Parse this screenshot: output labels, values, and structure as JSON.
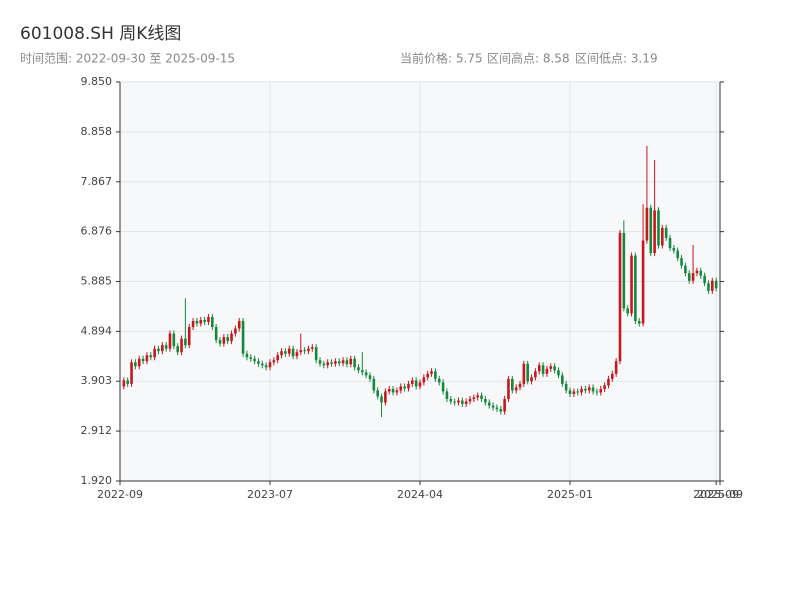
{
  "chart_data": {
    "type": "candlestick",
    "title": "601008.SH 周K线图",
    "subtitle": "时间范围: 2022-09-30 至 2025-09-15",
    "stats": [
      "当前价格: 5.75",
      "区间高点: 8.58",
      "区间低点: 3.19"
    ],
    "up_color": "#c8161d",
    "down_color": "#16883c",
    "grid": true,
    "xlim": [
      -1,
      155
    ],
    "xticks": [
      {
        "value": -1,
        "label": "2022-09"
      },
      {
        "value": 38,
        "label": "2023-07"
      },
      {
        "value": 77,
        "label": "2024-04"
      },
      {
        "value": 116,
        "label": "2025-01"
      },
      {
        "value": 154,
        "label": "2025-09"
      },
      {
        "value": 155,
        "label": "2025-09"
      }
    ],
    "ylim": [
      1.92,
      9.85
    ],
    "yticks": [
      {
        "value": 1.92,
        "label": "1.920"
      },
      2.912,
      3.903,
      4.894,
      5.885,
      6.876,
      7.867,
      8.858,
      {
        "value": 9.85,
        "label": "9.850"
      }
    ],
    "open": [
      3.8,
      3.92,
      3.85,
      4.28,
      4.2,
      4.35,
      4.3,
      4.42,
      4.38,
      4.55,
      4.5,
      4.62,
      4.55,
      4.85,
      4.6,
      4.48,
      4.75,
      4.62,
      4.98,
      5.1,
      5.05,
      5.12,
      5.08,
      5.18,
      4.98,
      4.72,
      4.65,
      4.78,
      4.7,
      4.85,
      4.95,
      5.1,
      4.45,
      4.38,
      4.35,
      4.3,
      4.25,
      4.22,
      4.18,
      4.28,
      4.32,
      4.42,
      4.5,
      4.45,
      4.55,
      4.4,
      4.48,
      4.52,
      4.5,
      4.55,
      4.58,
      4.32,
      4.25,
      4.22,
      4.28,
      4.25,
      4.3,
      4.26,
      4.32,
      4.24,
      4.35,
      4.18,
      4.12,
      4.08,
      4.02,
      3.95,
      3.72,
      3.6,
      3.48,
      3.7,
      3.75,
      3.68,
      3.72,
      3.8,
      3.76,
      3.85,
      3.92,
      3.8,
      3.88,
      3.98,
      4.05,
      4.1,
      3.95,
      3.88,
      3.7,
      3.55,
      3.5,
      3.48,
      3.52,
      3.45,
      3.5,
      3.55,
      3.58,
      3.62,
      3.55,
      3.48,
      3.42,
      3.38,
      3.35,
      3.3,
      3.55,
      3.95,
      3.72,
      3.78,
      3.85,
      4.25,
      3.9,
      3.98,
      4.1,
      4.22,
      4.05,
      4.15,
      4.2,
      4.12,
      4.02,
      3.85,
      3.72,
      3.65,
      3.7,
      3.68,
      3.75,
      3.72,
      3.78,
      3.7,
      3.68,
      3.75,
      3.82,
      3.95,
      4.05,
      4.3,
      6.85,
      5.35,
      5.25,
      6.4,
      5.1,
      5.05,
      6.7,
      7.35,
      6.45,
      7.3,
      6.6,
      6.95,
      6.75,
      6.55,
      6.5,
      6.35,
      6.2,
      6.05,
      5.9,
      6.05,
      6.1,
      6.0,
      5.85,
      5.7,
      5.9
    ],
    "high": [
      3.98,
      3.98,
      4.34,
      4.34,
      4.41,
      4.41,
      4.48,
      4.48,
      4.61,
      4.61,
      4.68,
      4.68,
      4.91,
      4.91,
      4.66,
      4.81,
      5.55,
      5.04,
      5.16,
      5.16,
      5.18,
      5.18,
      5.24,
      5.24,
      5.04,
      4.78,
      4.84,
      4.84,
      4.91,
      5.01,
      5.16,
      5.16,
      4.51,
      4.44,
      4.41,
      4.36,
      4.31,
      4.28,
      4.34,
      4.38,
      4.48,
      4.56,
      4.56,
      4.61,
      4.61,
      4.54,
      4.85,
      4.58,
      4.61,
      4.64,
      4.64,
      4.38,
      4.31,
      4.34,
      4.34,
      4.36,
      4.36,
      4.38,
      4.38,
      4.41,
      4.41,
      4.24,
      4.48,
      4.14,
      4.08,
      4.01,
      3.78,
      3.66,
      3.76,
      3.81,
      3.81,
      3.78,
      3.86,
      3.86,
      3.91,
      3.98,
      3.98,
      3.94,
      4.04,
      4.11,
      4.16,
      4.16,
      4.01,
      3.94,
      3.76,
      3.61,
      3.56,
      3.58,
      3.58,
      3.56,
      3.61,
      3.64,
      3.68,
      3.68,
      3.61,
      3.54,
      3.48,
      3.44,
      3.41,
      3.61,
      4.01,
      4.01,
      3.84,
      3.91,
      4.31,
      4.31,
      4.04,
      4.16,
      4.28,
      4.28,
      4.21,
      4.26,
      4.26,
      4.18,
      4.08,
      3.91,
      3.78,
      3.76,
      3.76,
      3.81,
      3.81,
      3.84,
      3.84,
      3.76,
      3.81,
      3.88,
      4.01,
      4.11,
      4.36,
      6.91,
      7.1,
      5.41,
      6.46,
      6.46,
      5.16,
      7.42,
      8.58,
      7.41,
      8.3,
      7.36,
      7.01,
      7.01,
      6.81,
      6.61,
      6.56,
      6.41,
      6.26,
      6.11,
      6.61,
      6.16,
      6.16,
      6.06,
      5.91,
      5.96,
      5.96
    ],
    "low": [
      3.74,
      3.79,
      3.79,
      4.14,
      4.14,
      4.24,
      4.24,
      4.32,
      4.32,
      4.44,
      4.44,
      4.49,
      4.49,
      4.54,
      4.42,
      4.42,
      4.56,
      4.56,
      4.92,
      4.99,
      4.99,
      5.02,
      5.02,
      4.92,
      4.66,
      4.59,
      4.59,
      4.64,
      4.64,
      4.79,
      4.89,
      4.39,
      4.32,
      4.29,
      4.24,
      4.19,
      4.16,
      4.12,
      4.12,
      4.22,
      4.26,
      4.36,
      4.39,
      4.39,
      4.34,
      4.34,
      4.42,
      4.44,
      4.44,
      4.49,
      4.26,
      4.19,
      4.16,
      4.16,
      4.19,
      4.19,
      4.2,
      4.2,
      4.18,
      4.18,
      4.12,
      4.06,
      4.02,
      3.96,
      3.89,
      3.66,
      3.54,
      3.19,
      3.42,
      3.64,
      3.62,
      3.62,
      3.66,
      3.7,
      3.7,
      3.79,
      3.74,
      3.74,
      3.82,
      3.92,
      3.99,
      3.89,
      3.82,
      3.64,
      3.49,
      3.44,
      3.42,
      3.42,
      3.39,
      3.39,
      3.44,
      3.49,
      3.52,
      3.49,
      3.42,
      3.36,
      3.32,
      3.29,
      3.24,
      3.24,
      3.49,
      3.66,
      3.66,
      3.72,
      3.79,
      3.84,
      3.84,
      3.92,
      4.04,
      3.99,
      3.99,
      4.09,
      4.06,
      3.96,
      3.79,
      3.66,
      3.59,
      3.59,
      3.62,
      3.62,
      3.66,
      3.66,
      3.64,
      3.62,
      3.62,
      3.69,
      3.76,
      3.89,
      3.99,
      4.24,
      5.29,
      5.19,
      5.19,
      5.04,
      4.99,
      4.99,
      6.64,
      6.39,
      6.39,
      6.54,
      6.54,
      6.69,
      6.49,
      6.44,
      6.29,
      6.14,
      5.99,
      5.84,
      5.84,
      5.99,
      5.94,
      5.79,
      5.64,
      5.64,
      5.69
    ],
    "close": [
      3.92,
      3.85,
      4.28,
      4.2,
      4.35,
      4.3,
      4.42,
      4.38,
      4.55,
      4.5,
      4.62,
      4.55,
      4.85,
      4.6,
      4.48,
      4.75,
      4.62,
      4.98,
      5.1,
      5.05,
      5.12,
      5.08,
      5.18,
      4.98,
      4.72,
      4.65,
      4.78,
      4.7,
      4.85,
      4.95,
      5.1,
      4.45,
      4.38,
      4.35,
      4.3,
      4.25,
      4.22,
      4.18,
      4.28,
      4.32,
      4.42,
      4.5,
      4.45,
      4.55,
      4.4,
      4.48,
      4.52,
      4.5,
      4.55,
      4.58,
      4.32,
      4.25,
      4.22,
      4.28,
      4.25,
      4.3,
      4.26,
      4.32,
      4.24,
      4.35,
      4.18,
      4.12,
      4.08,
      4.02,
      3.95,
      3.72,
      3.6,
      3.48,
      3.7,
      3.75,
      3.68,
      3.72,
      3.8,
      3.76,
      3.85,
      3.92,
      3.8,
      3.88,
      3.98,
      4.05,
      4.1,
      3.95,
      3.88,
      3.7,
      3.55,
      3.5,
      3.48,
      3.52,
      3.45,
      3.5,
      3.55,
      3.58,
      3.62,
      3.55,
      3.48,
      3.42,
      3.38,
      3.35,
      3.3,
      3.55,
      3.95,
      3.72,
      3.78,
      3.85,
      4.25,
      3.9,
      3.98,
      4.1,
      4.22,
      4.05,
      4.15,
      4.2,
      4.12,
      4.02,
      3.85,
      3.72,
      3.65,
      3.7,
      3.68,
      3.75,
      3.72,
      3.78,
      3.7,
      3.68,
      3.75,
      3.82,
      3.95,
      4.05,
      4.3,
      6.85,
      5.35,
      5.25,
      6.4,
      5.1,
      5.05,
      6.7,
      7.35,
      6.45,
      7.3,
      6.6,
      6.95,
      6.75,
      6.55,
      6.5,
      6.35,
      6.2,
      6.05,
      5.9,
      6.05,
      6.1,
      6.0,
      5.85,
      5.7,
      5.9,
      5.75
    ]
  }
}
